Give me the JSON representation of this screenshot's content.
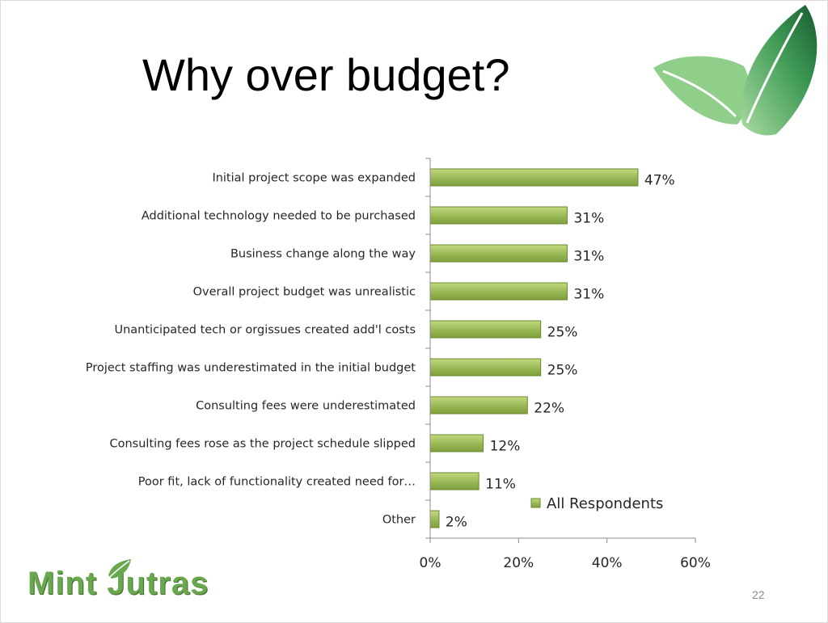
{
  "slide": {
    "title": "Why over budget?",
    "page_number": "22",
    "brand": "Mint Jutras"
  },
  "colors": {
    "bar_fill": "#9bbb59",
    "bar_light": "#c3d97f",
    "bar_stroke": "#6b8a2d",
    "axis": "#8c8c8c",
    "leaf_light": "#8fcf8a",
    "leaf_dark": "#1e6b3a"
  },
  "chart_data": {
    "type": "bar",
    "orientation": "horizontal",
    "categories": [
      "Initial project scope was expanded",
      "Additional technology needed to be purchased",
      "Business change along the way",
      "Overall project budget was unrealistic",
      "Unanticipated tech or orgissues created add'l costs",
      "Project staffing was underestimated in the initial budget",
      "Consulting fees were underestimated",
      "Consulting fees rose as the project schedule slipped",
      "Poor fit, lack of functionality created need for…",
      "Other"
    ],
    "series": [
      {
        "name": "All Respondents",
        "values": [
          47,
          31,
          31,
          31,
          25,
          25,
          22,
          12,
          11,
          2
        ],
        "labels": [
          "47%",
          "31%",
          "31%",
          "31%",
          "25%",
          "25%",
          "22%",
          "12%",
          "11%",
          "2%"
        ]
      }
    ],
    "xlim": [
      0,
      60
    ],
    "x_ticks": [
      "0%",
      "20%",
      "40%",
      "60%"
    ],
    "grid": false,
    "legend_position": "inside-bottom-right"
  }
}
